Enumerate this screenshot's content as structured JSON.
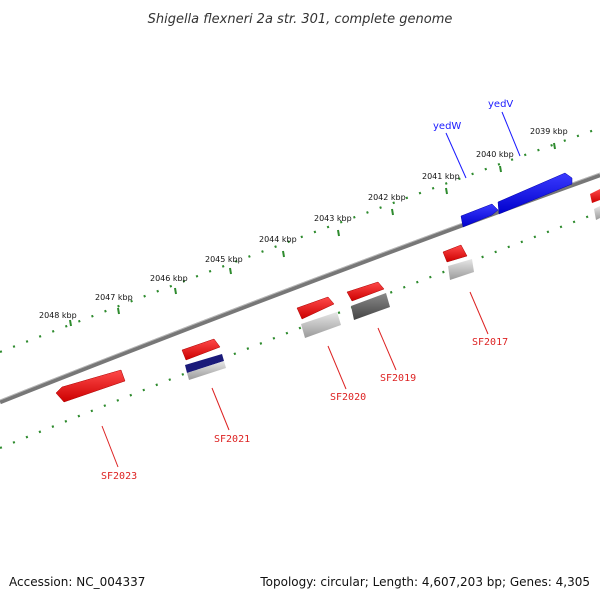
{
  "title": "Shigella flexneri 2a str. 301, complete genome",
  "footer": {
    "accession": "Accession: NC_004337",
    "summary": "Topology: circular; Length: 4,607,203 bp; Genes: 4,305"
  },
  "colors": {
    "backbone": "#777777",
    "forward_gene": "#1a1aff",
    "reverse_gene": "#ff1a1a",
    "tick": "#2e8b2e",
    "cds_gray": "#aaaaaa",
    "cds_dark": "#555555",
    "cds_navy": "#1a1a7a"
  },
  "kbp_labels": [
    "2039 kbp",
    "2040 kbp",
    "2041 kbp",
    "2042 kbp",
    "2043 kbp",
    "2044 kbp",
    "2045 kbp",
    "2046 kbp",
    "2047 kbp",
    "2048 kbp"
  ],
  "genes_forward": [
    {
      "name": "yedV"
    },
    {
      "name": "yedW"
    }
  ],
  "genes_reverse": [
    {
      "name": "SF2017"
    },
    {
      "name": "SF2019"
    },
    {
      "name": "SF2020"
    },
    {
      "name": "SF2021"
    },
    {
      "name": "SF2023"
    }
  ]
}
